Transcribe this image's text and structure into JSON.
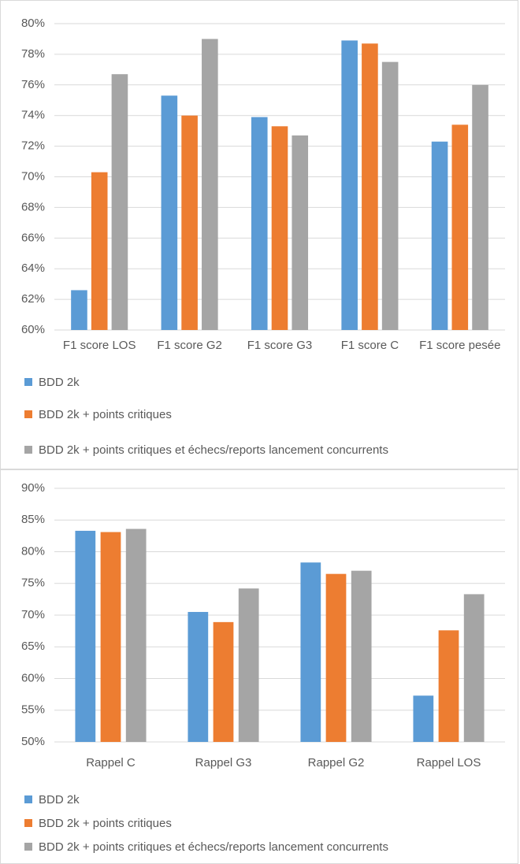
{
  "chart_data": [
    {
      "type": "bar",
      "categories": [
        "F1 score LOS",
        "F1 score G2",
        "F1 score G3",
        "F1 score C",
        "F1 score pesée"
      ],
      "series": [
        {
          "name": "BDD 2k",
          "color": "#5b9bd5",
          "values": [
            62.6,
            75.3,
            73.9,
            78.9,
            72.3
          ]
        },
        {
          "name": "BDD 2k + points critiques",
          "color": "#ed7d31",
          "values": [
            70.3,
            74.0,
            73.3,
            78.7,
            73.4
          ]
        },
        {
          "name": "BDD 2k + points critiques et échecs/reports lancement concurrents",
          "color": "#a5a5a5",
          "values": [
            76.7,
            79.0,
            72.7,
            77.5,
            76.0
          ]
        }
      ],
      "ylim": [
        60,
        80
      ],
      "yticks": [
        {
          "value": 60,
          "label": "60%"
        },
        {
          "value": 62,
          "label": "62%"
        },
        {
          "value": 64,
          "label": "64%"
        },
        {
          "value": 66,
          "label": "66%"
        },
        {
          "value": 68,
          "label": "68%"
        },
        {
          "value": 70,
          "label": "70%"
        },
        {
          "value": 72,
          "label": "72%"
        },
        {
          "value": 74,
          "label": "74%"
        },
        {
          "value": 76,
          "label": "76%"
        },
        {
          "value": 78,
          "label": "78%"
        },
        {
          "value": 80,
          "label": "80%"
        }
      ],
      "grid": true,
      "legend": "bottom"
    },
    {
      "type": "bar",
      "categories": [
        "Rappel C",
        "Rappel G3",
        "Rappel G2",
        "Rappel LOS"
      ],
      "series": [
        {
          "name": "BDD 2k",
          "color": "#5b9bd5",
          "values": [
            83.3,
            70.5,
            78.3,
            57.3
          ]
        },
        {
          "name": "BDD 2k + points critiques",
          "color": "#ed7d31",
          "values": [
            83.1,
            68.9,
            76.5,
            67.6
          ]
        },
        {
          "name": "BDD 2k + points critiques et échecs/reports lancement concurrents",
          "color": "#a5a5a5",
          "values": [
            83.6,
            74.2,
            77.0,
            73.3
          ]
        }
      ],
      "ylim": [
        50,
        90
      ],
      "yticks": [
        {
          "value": 50,
          "label": "50%"
        },
        {
          "value": 55,
          "label": "55%"
        },
        {
          "value": 60,
          "label": "60%"
        },
        {
          "value": 65,
          "label": "65%"
        },
        {
          "value": 70,
          "label": "70%"
        },
        {
          "value": 75,
          "label": "75%"
        },
        {
          "value": 80,
          "label": "80%"
        },
        {
          "value": 85,
          "label": "85%"
        },
        {
          "value": 90,
          "label": "90%"
        }
      ],
      "grid": true,
      "legend": "bottom"
    }
  ]
}
